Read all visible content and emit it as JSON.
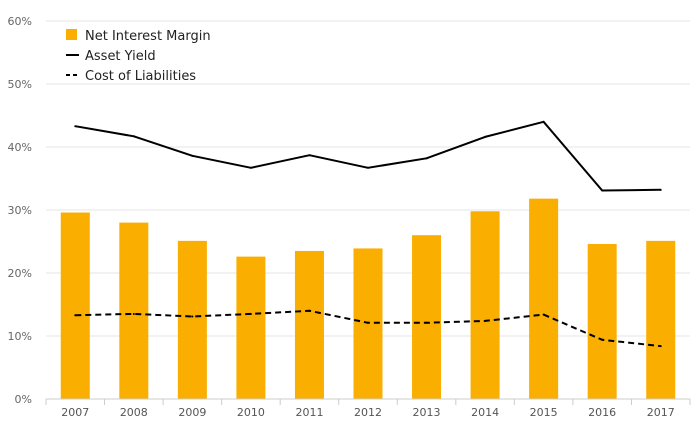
{
  "chart_data": {
    "type": "bar",
    "categories": [
      "2007",
      "2008",
      "2009",
      "2010",
      "2011",
      "2012",
      "2013",
      "2014",
      "2015",
      "2016",
      "2017"
    ],
    "series": [
      {
        "name": "Net Interest Margin",
        "kind": "bar",
        "color": "#f9ae00",
        "values": [
          29.6,
          28.0,
          25.1,
          22.6,
          23.5,
          23.9,
          26.0,
          29.8,
          31.8,
          24.6,
          25.1
        ]
      },
      {
        "name": "Asset Yield",
        "kind": "line",
        "style": "solid",
        "color": "#000000",
        "values": [
          43.3,
          41.7,
          38.6,
          36.7,
          38.7,
          36.7,
          38.2,
          41.6,
          44.0,
          33.1,
          33.2
        ]
      },
      {
        "name": "Cost of Liabilities",
        "kind": "line",
        "style": "dashed",
        "color": "#000000",
        "values": [
          13.3,
          13.5,
          13.1,
          13.5,
          14.0,
          12.1,
          12.1,
          12.4,
          13.4,
          9.4,
          8.4
        ]
      }
    ],
    "ylim": [
      0,
      60
    ],
    "yticks": [
      0,
      10,
      20,
      30,
      40,
      50,
      60
    ],
    "ytick_labels": [
      "0%",
      "10%",
      "20%",
      "30%",
      "40%",
      "50%",
      "60%"
    ],
    "grid": true,
    "legend_position": "top-left",
    "title": "",
    "xlabel": "",
    "ylabel": ""
  }
}
